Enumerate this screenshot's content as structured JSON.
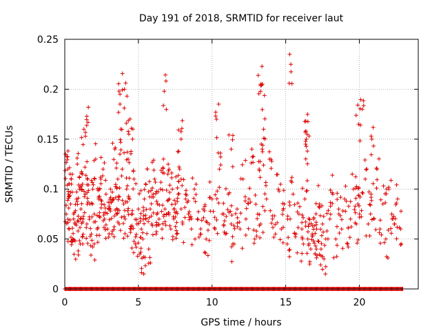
{
  "chart_data": {
    "type": "scatter",
    "title": "Day 191 of 2018, SRMTID for receiver laut",
    "xlabel": "GPS time / hours",
    "ylabel": "SRMTID / TECUs",
    "xlim": [
      0,
      24
    ],
    "ylim": [
      0,
      0.25
    ],
    "x_ticks": [
      0,
      5,
      10,
      15,
      20
    ],
    "x_tick_labels": [
      "0",
      "5",
      "10",
      "15",
      "20"
    ],
    "y_ticks": [
      0,
      0.05,
      0.1,
      0.15,
      0.2,
      0.25
    ],
    "y_tick_labels": [
      "0",
      "0.05",
      "0.1",
      "0.15",
      "0.2",
      "0.25"
    ],
    "grid": true,
    "marker": "+",
    "color": "#dd0000",
    "series": [
      {
        "name": "SRMTID",
        "x": [
          0.1,
          0.2,
          0.25,
          0.3,
          0.4,
          0.45,
          0.55,
          0.6,
          0.7,
          0.8,
          0.85,
          0.9,
          1.0,
          1.05,
          1.1,
          1.2,
          1.25,
          1.3,
          1.4,
          1.5,
          1.55,
          1.6,
          1.7,
          1.8,
          1.9,
          2.0,
          2.1,
          2.2,
          2.3,
          2.45,
          2.5,
          2.6,
          2.7,
          2.8,
          2.9,
          3.0,
          3.1,
          3.2,
          3.3,
          3.4,
          3.5,
          3.6,
          3.7,
          3.75,
          3.8,
          3.9,
          4.0,
          4.1,
          4.2,
          4.3,
          4.4,
          4.5,
          4.6,
          4.7,
          4.8,
          4.9,
          5.0,
          5.1,
          5.2,
          5.3,
          5.4,
          5.5,
          5.6,
          5.7,
          5.8,
          5.9,
          6.0,
          6.1,
          6.2,
          6.3,
          6.4,
          6.5,
          6.6,
          6.7,
          6.8,
          6.9,
          7.0,
          7.1,
          7.2,
          7.3,
          7.4,
          7.5,
          7.6,
          7.7,
          7.8,
          7.9,
          8.0,
          8.2,
          8.4,
          8.6,
          8.8,
          9.0,
          9.2,
          9.4,
          9.6,
          9.8,
          10.0,
          10.2,
          10.3,
          10.5,
          10.7,
          10.9,
          11.1,
          11.3,
          11.5,
          11.7,
          11.9,
          12.1,
          12.3,
          12.5,
          12.7,
          12.9,
          13.1,
          13.2,
          13.3,
          13.4,
          13.5,
          13.7,
          13.9,
          14.1,
          14.3,
          14.5,
          14.7,
          14.9,
          15.1,
          15.3,
          15.5,
          15.7,
          15.9,
          16.1,
          16.2,
          16.3,
          16.4,
          16.5,
          16.6,
          16.7,
          16.8,
          16.9,
          17.0,
          17.1,
          17.2,
          17.3,
          17.4,
          17.5,
          17.6,
          17.8,
          18.0,
          18.2,
          18.4,
          18.6,
          18.8,
          19.0,
          19.2,
          19.4,
          19.6,
          19.8,
          19.9,
          20.0,
          20.2,
          20.4,
          20.6,
          20.8,
          21.0,
          21.2,
          21.4,
          21.6,
          21.8,
          22.0,
          22.2,
          22.4,
          22.6,
          22.8,
          0.05,
          0.3,
          0.7,
          1.2,
          1.9,
          2.5,
          3.1,
          3.7,
          4.05,
          4.35,
          4.6,
          5.35,
          6.75,
          7.9,
          10.35,
          11.3,
          13.3,
          13.4,
          15.35,
          16.35,
          16.45,
          19.95,
          20.05,
          20.85
        ],
        "y": [
          0.075,
          0.12,
          0.095,
          0.06,
          0.085,
          0.11,
          0.05,
          0.07,
          0.065,
          0.09,
          0.125,
          0.058,
          0.1,
          0.045,
          0.08,
          0.115,
          0.07,
          0.16,
          0.095,
          0.065,
          0.11,
          0.182,
          0.085,
          0.055,
          0.1,
          0.075,
          0.13,
          0.06,
          0.09,
          0.11,
          0.085,
          0.12,
          0.07,
          0.095,
          0.06,
          0.08,
          0.1,
          0.055,
          0.09,
          0.14,
          0.075,
          0.11,
          0.065,
          0.195,
          0.16,
          0.12,
          0.085,
          0.07,
          0.1,
          0.13,
          0.09,
          0.06,
          0.075,
          0.11,
          0.045,
          0.065,
          0.08,
          0.035,
          0.06,
          0.05,
          0.09,
          0.07,
          0.12,
          0.04,
          0.08,
          0.065,
          0.095,
          0.11,
          0.055,
          0.085,
          0.07,
          0.1,
          0.06,
          0.13,
          0.08,
          0.075,
          0.115,
          0.09,
          0.06,
          0.1,
          0.07,
          0.085,
          0.055,
          0.095,
          0.12,
          0.11,
          0.065,
          0.09,
          0.075,
          0.06,
          0.1,
          0.07,
          0.055,
          0.08,
          0.05,
          0.065,
          0.09,
          0.06,
          0.17,
          0.12,
          0.075,
          0.055,
          0.095,
          0.065,
          0.045,
          0.08,
          0.06,
          0.11,
          0.07,
          0.09,
          0.14,
          0.05,
          0.075,
          0.12,
          0.065,
          0.205,
          0.16,
          0.09,
          0.13,
          0.07,
          0.055,
          0.1,
          0.06,
          0.085,
          0.045,
          0.07,
          0.095,
          0.055,
          0.075,
          0.06,
          0.045,
          0.09,
          0.15,
          0.05,
          0.065,
          0.04,
          0.055,
          0.07,
          0.035,
          0.06,
          0.048,
          0.085,
          0.04,
          0.065,
          0.03,
          0.058,
          0.07,
          0.095,
          0.05,
          0.08,
          0.06,
          0.09,
          0.045,
          0.07,
          0.1,
          0.065,
          0.085,
          0.075,
          0.18,
          0.11,
          0.065,
          0.095,
          0.07,
          0.12,
          0.06,
          0.085,
          0.05,
          0.1,
          0.075,
          0.065,
          0.09,
          0.06,
          0.135,
          0.105,
          0.048,
          0.105,
          0.042,
          0.088,
          0.078,
          0.092,
          0.2,
          0.155,
          0.15,
          0.032,
          0.198,
          0.15,
          0.098,
          0.14,
          0.205,
          0.14,
          0.225,
          0.145,
          0.155,
          0.165,
          0.092,
          0.15
        ]
      }
    ],
    "zero_series_x_range": [
      0,
      23
    ]
  }
}
